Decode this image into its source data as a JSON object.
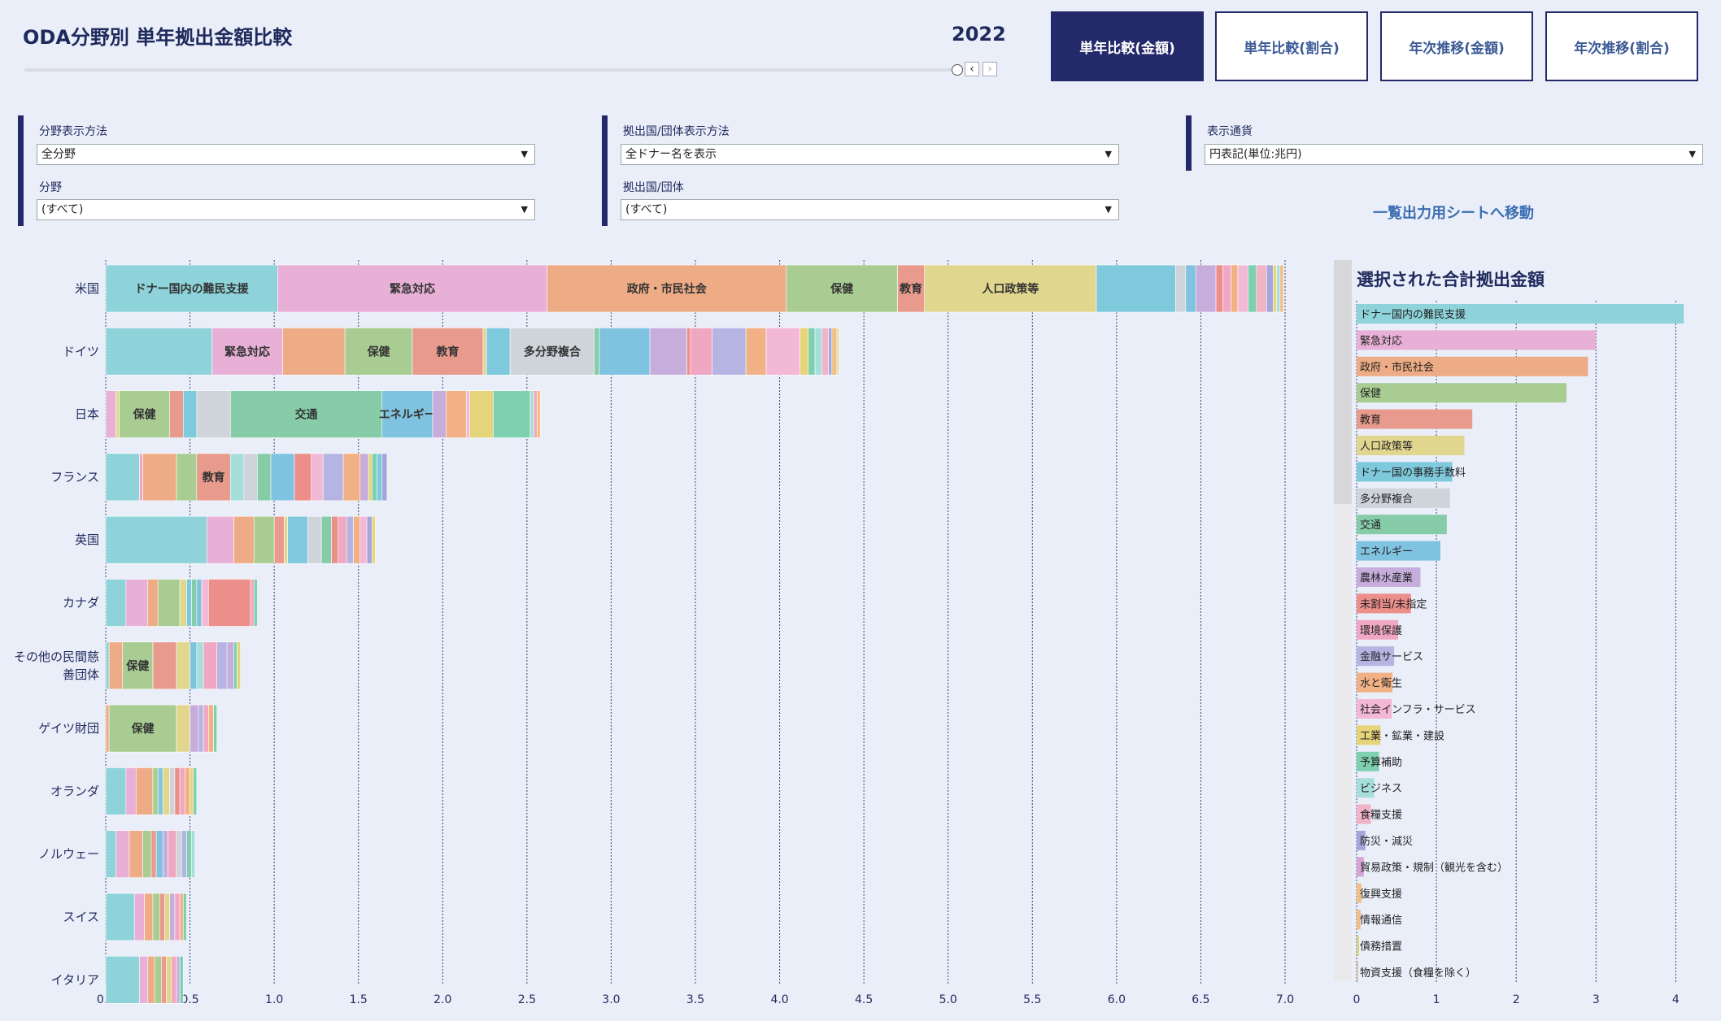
{
  "header": {
    "title": "ODA分野別 単年拠出金額比較",
    "year": "2022",
    "tabs": [
      "単年比較(金額)",
      "単年比較(割合)",
      "年次推移(金額)",
      "年次推移(割合)"
    ],
    "active_tab": 0
  },
  "filters": {
    "field_display": {
      "label": "分野表示方法",
      "value": "全分野"
    },
    "field": {
      "label": "分野",
      "value": "(すべて)"
    },
    "donor_display": {
      "label": "拠出国/団体表示方法",
      "value": "全ドナー名を表示"
    },
    "donor": {
      "label": "拠出国/団体",
      "value": "(すべて)"
    },
    "currency": {
      "label": "表示通貨",
      "value": "円表記(単位:兆円)"
    },
    "export_link": "一覧出力用シートへ移動"
  },
  "colors": {
    "ドナー国内の難民支援": "#8dd3d9",
    "緊急対応": "#e8b0d6",
    "政府・市民社会": "#eeac86",
    "保健": "#a8cc92",
    "教育": "#e89a8d",
    "人口政策等": "#e0d68e",
    "ドナー国の事務手数料": "#7fc9dc",
    "多分野複合": "#cfd3da",
    "交通": "#86cca9",
    "エネルギー": "#80c3e0",
    "農林水産業": "#c6addc",
    "未割当/未指定": "#ec8e8a",
    "環境保護": "#f0a8c2",
    "金融サービス": "#b6b4e3",
    "水と衛生": "#f1b184",
    "社会インフラ・サービス": "#f3b8d6",
    "工業・鉱業・建設": "#e6d47a",
    "予算補助": "#7ed0b0",
    "ビジネス": "#a6dedb",
    "食糧支援": "#f0b4c8",
    "防災・減災": "#a4a6dc",
    "貿易政策・規制（観光を含む）": "#d9a3d5",
    "復興支援": "#f2bf86",
    "情報通信": "#f5be80",
    "債務措置": "#d6d480",
    "物資支援（食糧を除く）": "#d3c9a8"
  },
  "chart_data": [
    {
      "type": "bar",
      "orientation": "horizontal-stacked",
      "title": "",
      "xlim": [
        0,
        7.0
      ],
      "xticks": [
        "0.0",
        "0.5",
        "1.0",
        "1.5",
        "2.0",
        "2.5",
        "3.0",
        "3.5",
        "4.0",
        "4.5",
        "5.0",
        "5.5",
        "6.0",
        "6.5",
        "7.0"
      ],
      "categories": [
        "米国",
        "ドイツ",
        "日本",
        "フランス",
        "英国",
        "カナダ",
        "その他の民間慈善団体",
        "ゲイツ財団",
        "オランダ",
        "ノルウェー",
        "スイス",
        "イタリア"
      ],
      "category_labels": [
        [
          "米国"
        ],
        [
          "ドイツ"
        ],
        [
          "日本"
        ],
        [
          "フランス"
        ],
        [
          "英国"
        ],
        [
          "カナダ"
        ],
        [
          "その他の民間慈",
          "善団体"
        ],
        [
          "ゲイツ財団"
        ],
        [
          "オランダ"
        ],
        [
          "ノルウェー"
        ],
        [
          "スイス"
        ],
        [
          "イタリア"
        ]
      ],
      "rows": [
        {
          "donor": "米国",
          "segments": [
            {
              "s": "ドナー国内の難民支援",
              "v": 1.02,
              "label": "ドナー国内の難民支援"
            },
            {
              "s": "緊急対応",
              "v": 1.6,
              "label": "緊急対応"
            },
            {
              "s": "政府・市民社会",
              "v": 1.42,
              "label": "政府・市民社会"
            },
            {
              "s": "保健",
              "v": 0.66,
              "label": "保健"
            },
            {
              "s": "教育",
              "v": 0.16,
              "label": "教育"
            },
            {
              "s": "人口政策等",
              "v": 1.02,
              "label": "人口政策等"
            },
            {
              "s": "ドナー国の事務手数料",
              "v": 0.47
            },
            {
              "s": "多分野複合",
              "v": 0.06
            },
            {
              "s": "エネルギー",
              "v": 0.06
            },
            {
              "s": "農林水産業",
              "v": 0.12
            },
            {
              "s": "未割当/未指定",
              "v": 0.04
            },
            {
              "s": "環境保護",
              "v": 0.05
            },
            {
              "s": "水と衛生",
              "v": 0.04
            },
            {
              "s": "社会インフラ・サービス",
              "v": 0.06
            },
            {
              "s": "予算補助",
              "v": 0.05
            },
            {
              "s": "食糧支援",
              "v": 0.06
            },
            {
              "s": "防災・減災",
              "v": 0.04
            },
            {
              "s": "工業・鉱業・建設",
              "v": 0.02
            },
            {
              "s": "ビジネス",
              "v": 0.02
            },
            {
              "s": "復興支援",
              "v": 0.02
            }
          ]
        },
        {
          "donor": "ドイツ",
          "segments": [
            {
              "s": "ドナー国内の難民支援",
              "v": 0.63
            },
            {
              "s": "緊急対応",
              "v": 0.42,
              "label": "緊急対応"
            },
            {
              "s": "政府・市民社会",
              "v": 0.37
            },
            {
              "s": "保健",
              "v": 0.4,
              "label": "保健"
            },
            {
              "s": "教育",
              "v": 0.42,
              "label": "教育"
            },
            {
              "s": "人口政策等",
              "v": 0.02
            },
            {
              "s": "ドナー国の事務手数料",
              "v": 0.14
            },
            {
              "s": "多分野複合",
              "v": 0.5,
              "label": "多分野複合"
            },
            {
              "s": "交通",
              "v": 0.03
            },
            {
              "s": "エネルギー",
              "v": 0.3
            },
            {
              "s": "農林水産業",
              "v": 0.22
            },
            {
              "s": "未割当/未指定",
              "v": 0.02
            },
            {
              "s": "環境保護",
              "v": 0.13
            },
            {
              "s": "金融サービス",
              "v": 0.2
            },
            {
              "s": "水と衛生",
              "v": 0.12
            },
            {
              "s": "社会インフラ・サービス",
              "v": 0.2
            },
            {
              "s": "工業・鉱業・建設",
              "v": 0.05
            },
            {
              "s": "予算補助",
              "v": 0.04
            },
            {
              "s": "ビジネス",
              "v": 0.04
            },
            {
              "s": "食糧支援",
              "v": 0.04
            },
            {
              "s": "防災・減災",
              "v": 0.02
            },
            {
              "s": "復興支援",
              "v": 0.03
            },
            {
              "s": "債務措置",
              "v": 0.01
            }
          ]
        },
        {
          "donor": "日本",
          "segments": [
            {
              "s": "緊急対応",
              "v": 0.06
            },
            {
              "s": "人口政策等",
              "v": 0.02
            },
            {
              "s": "保健",
              "v": 0.3,
              "label": "保健"
            },
            {
              "s": "教育",
              "v": 0.08
            },
            {
              "s": "ドナー国の事務手数料",
              "v": 0.08
            },
            {
              "s": "多分野複合",
              "v": 0.2
            },
            {
              "s": "交通",
              "v": 0.9,
              "label": "交通"
            },
            {
              "s": "エネルギー",
              "v": 0.3,
              "label": "エネルギー"
            },
            {
              "s": "農林水産業",
              "v": 0.08
            },
            {
              "s": "水と衛生",
              "v": 0.12
            },
            {
              "s": "社会インフラ・サービス",
              "v": 0.02
            },
            {
              "s": "工業・鉱業・建設",
              "v": 0.14
            },
            {
              "s": "予算補助",
              "v": 0.22
            },
            {
              "s": "ビジネス",
              "v": 0.02
            },
            {
              "s": "環境保護",
              "v": 0.02
            },
            {
              "s": "情報通信",
              "v": 0.02
            }
          ]
        },
        {
          "donor": "フランス",
          "segments": [
            {
              "s": "ドナー国内の難民支援",
              "v": 0.2
            },
            {
              "s": "環境保護",
              "v": 0.02
            },
            {
              "s": "政府・市民社会",
              "v": 0.2
            },
            {
              "s": "保健",
              "v": 0.12
            },
            {
              "s": "教育",
              "v": 0.2,
              "label": "教育"
            },
            {
              "s": "ビジネス",
              "v": 0.08
            },
            {
              "s": "多分野複合",
              "v": 0.08
            },
            {
              "s": "交通",
              "v": 0.08
            },
            {
              "s": "エネルギー",
              "v": 0.14
            },
            {
              "s": "未割当/未指定",
              "v": 0.1
            },
            {
              "s": "社会インフラ・サービス",
              "v": 0.07
            },
            {
              "s": "金融サービス",
              "v": 0.12
            },
            {
              "s": "水と衛生",
              "v": 0.1
            },
            {
              "s": "農林水産業",
              "v": 0.05
            },
            {
              "s": "工業・鉱業・建設",
              "v": 0.02
            },
            {
              "s": "予算補助",
              "v": 0.03
            },
            {
              "s": "ドナー国の事務手数料",
              "v": 0.03
            },
            {
              "s": "防災・減災",
              "v": 0.03
            }
          ]
        },
        {
          "donor": "英国",
          "segments": [
            {
              "s": "ドナー国内の難民支援",
              "v": 0.6
            },
            {
              "s": "緊急対応",
              "v": 0.16
            },
            {
              "s": "政府・市民社会",
              "v": 0.12
            },
            {
              "s": "保健",
              "v": 0.12
            },
            {
              "s": "教育",
              "v": 0.06
            },
            {
              "s": "人口政策等",
              "v": 0.02
            },
            {
              "s": "ドナー国の事務手数料",
              "v": 0.12
            },
            {
              "s": "多分野複合",
              "v": 0.08
            },
            {
              "s": "交通",
              "v": 0.06
            },
            {
              "s": "未割当/未指定",
              "v": 0.04
            },
            {
              "s": "環境保護",
              "v": 0.05
            },
            {
              "s": "金融サービス",
              "v": 0.04
            },
            {
              "s": "水と衛生",
              "v": 0.04
            },
            {
              "s": "社会インフラ・サービス",
              "v": 0.04
            },
            {
              "s": "防災・減災",
              "v": 0.03
            },
            {
              "s": "工業・鉱業・建設",
              "v": 0.02
            }
          ]
        },
        {
          "donor": "カナダ",
          "segments": [
            {
              "s": "ドナー国内の難民支援",
              "v": 0.12
            },
            {
              "s": "緊急対応",
              "v": 0.13
            },
            {
              "s": "政府・市民社会",
              "v": 0.06
            },
            {
              "s": "保健",
              "v": 0.13
            },
            {
              "s": "人口政策等",
              "v": 0.04
            },
            {
              "s": "ドナー国の事務手数料",
              "v": 0.03
            },
            {
              "s": "交通",
              "v": 0.03
            },
            {
              "s": "エネルギー",
              "v": 0.03
            },
            {
              "s": "社会インフラ・サービス",
              "v": 0.04
            },
            {
              "s": "未割当/未指定",
              "v": 0.25
            },
            {
              "s": "環境保護",
              "v": 0.02
            },
            {
              "s": "予算補助",
              "v": 0.02
            }
          ]
        },
        {
          "donor": "その他の民間慈善団体",
          "segments": [
            {
              "s": "ドナー国内の難民支援",
              "v": 0.02
            },
            {
              "s": "政府・市民社会",
              "v": 0.08
            },
            {
              "s": "保健",
              "v": 0.18,
              "label": "保健"
            },
            {
              "s": "教育",
              "v": 0.14
            },
            {
              "s": "人口政策等",
              "v": 0.08
            },
            {
              "s": "エネルギー",
              "v": 0.04
            },
            {
              "s": "ビジネス",
              "v": 0.04
            },
            {
              "s": "環境保護",
              "v": 0.08
            },
            {
              "s": "金融サービス",
              "v": 0.06
            },
            {
              "s": "農林水産業",
              "v": 0.04
            },
            {
              "s": "予算補助",
              "v": 0.02
            },
            {
              "s": "工業・鉱業・建設",
              "v": 0.02
            }
          ]
        },
        {
          "donor": "ゲイツ財団",
          "segments": [
            {
              "s": "政府・市民社会",
              "v": 0.02
            },
            {
              "s": "保健",
              "v": 0.4,
              "label": "保健"
            },
            {
              "s": "人口政策等",
              "v": 0.08
            },
            {
              "s": "農林水産業",
              "v": 0.05
            },
            {
              "s": "金融サービス",
              "v": 0.03
            },
            {
              "s": "環境保護",
              "v": 0.03
            },
            {
              "s": "水と衛生",
              "v": 0.03
            },
            {
              "s": "予算補助",
              "v": 0.02
            }
          ]
        },
        {
          "donor": "オランダ",
          "segments": [
            {
              "s": "ドナー国内の難民支援",
              "v": 0.12
            },
            {
              "s": "緊急対応",
              "v": 0.06
            },
            {
              "s": "政府・市民社会",
              "v": 0.1
            },
            {
              "s": "保健",
              "v": 0.03
            },
            {
              "s": "ドナー国の事務手数料",
              "v": 0.03
            },
            {
              "s": "人口政策等",
              "v": 0.04
            },
            {
              "s": "多分野複合",
              "v": 0.03
            },
            {
              "s": "未割当/未指定",
              "v": 0.03
            },
            {
              "s": "環境保護",
              "v": 0.03
            },
            {
              "s": "水と衛生",
              "v": 0.03
            },
            {
              "s": "工業・鉱業・建設",
              "v": 0.02
            },
            {
              "s": "予算補助",
              "v": 0.02
            }
          ]
        },
        {
          "donor": "ノルウェー",
          "segments": [
            {
              "s": "ドナー国内の難民支援",
              "v": 0.06
            },
            {
              "s": "緊急対応",
              "v": 0.08
            },
            {
              "s": "政府・市民社会",
              "v": 0.08
            },
            {
              "s": "保健",
              "v": 0.05
            },
            {
              "s": "教育",
              "v": 0.03
            },
            {
              "s": "エネルギー",
              "v": 0.04
            },
            {
              "s": "農林水産業",
              "v": 0.03
            },
            {
              "s": "環境保護",
              "v": 0.05
            },
            {
              "s": "多分野複合",
              "v": 0.03
            },
            {
              "s": "金融サービス",
              "v": 0.03
            },
            {
              "s": "予算補助",
              "v": 0.03
            },
            {
              "s": "ビジネス",
              "v": 0.02
            }
          ]
        },
        {
          "donor": "スイス",
          "segments": [
            {
              "s": "ドナー国内の難民支援",
              "v": 0.17
            },
            {
              "s": "緊急対応",
              "v": 0.06
            },
            {
              "s": "政府・市民社会",
              "v": 0.05
            },
            {
              "s": "保健",
              "v": 0.04
            },
            {
              "s": "教育",
              "v": 0.03
            },
            {
              "s": "人口政策等",
              "v": 0.03
            },
            {
              "s": "農林水産業",
              "v": 0.03
            },
            {
              "s": "環境保護",
              "v": 0.03
            },
            {
              "s": "水と衛生",
              "v": 0.02
            },
            {
              "s": "予算補助",
              "v": 0.02
            }
          ]
        },
        {
          "donor": "イタリア",
          "segments": [
            {
              "s": "ドナー国内の難民支援",
              "v": 0.2
            },
            {
              "s": "緊急対応",
              "v": 0.05
            },
            {
              "s": "政府・市民社会",
              "v": 0.04
            },
            {
              "s": "保健",
              "v": 0.04
            },
            {
              "s": "教育",
              "v": 0.03
            },
            {
              "s": "人口政策等",
              "v": 0.03
            },
            {
              "s": "環境保護",
              "v": 0.03
            },
            {
              "s": "農林水産業",
              "v": 0.02
            },
            {
              "s": "予算補助",
              "v": 0.02
            }
          ]
        }
      ]
    },
    {
      "type": "bar",
      "orientation": "horizontal",
      "title": "選択された合計拠出金額",
      "xlim": [
        0,
        4.2
      ],
      "xticks": [
        "0",
        "1",
        "2",
        "3",
        "4"
      ],
      "categories": [
        "ドナー国内の難民支援",
        "緊急対応",
        "政府・市民社会",
        "保健",
        "教育",
        "人口政策等",
        "ドナー国の事務手数料",
        "多分野複合",
        "交通",
        "エネルギー",
        "農林水産業",
        "未割当/未指定",
        "環境保護",
        "金融サービス",
        "水と衛生",
        "社会インフラ・サービス",
        "工業・鉱業・建設",
        "予算補助",
        "ビジネス",
        "食糧支援",
        "防災・減災",
        "貿易政策・規制（観光を含む）",
        "復興支援",
        "情報通信",
        "債務措置",
        "物資支援（食糧を除く）"
      ],
      "values": [
        4.1,
        3.0,
        2.9,
        2.63,
        1.45,
        1.35,
        1.2,
        1.17,
        1.13,
        1.05,
        0.8,
        0.68,
        0.52,
        0.47,
        0.45,
        0.44,
        0.3,
        0.28,
        0.22,
        0.18,
        0.11,
        0.09,
        0.06,
        0.05,
        0.03,
        0.02
      ]
    }
  ]
}
